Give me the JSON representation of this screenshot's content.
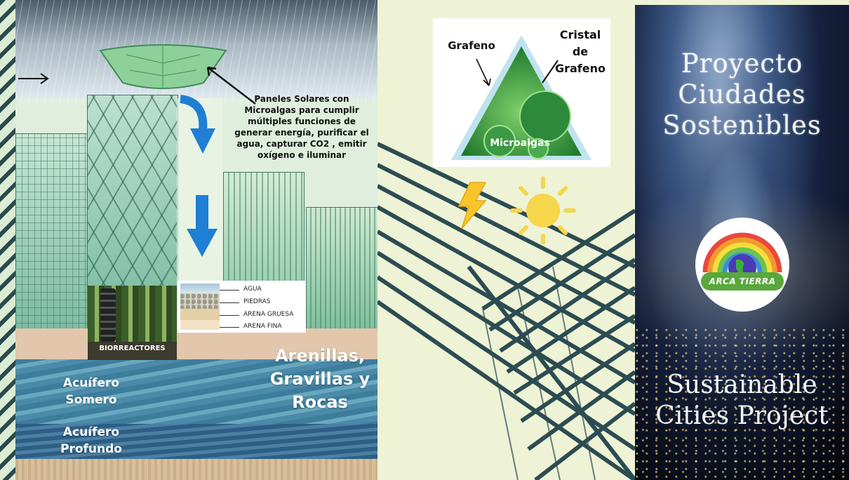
{
  "left_panel": {
    "caption": "Paneles Solares con Microalgas para cumplir múltiples funciones de generar energía, purificar el agua, capturar CO2 , emitir oxígeno e iluminar",
    "bioreactors_label": "BIORREACTORES",
    "filter_layers": [
      "AGUA",
      "PIEDRAS",
      "ARENA GRUESA",
      "ARENA FINA"
    ],
    "arenillas": "Arenillas, Gravillas y Rocas",
    "aquifer_shallow": "Acuífero Somero",
    "aquifer_deep": "Acuífero Profundo",
    "colors": {
      "arrow": "#1e7fd4",
      "water": "#4b8aa8",
      "building": "#7cbba2"
    }
  },
  "middle_panel": {
    "label_grafeno": "Grafeno",
    "label_cristal": "Cristal de Grafeno",
    "label_microalgas": "Microalgas",
    "colors": {
      "bolt": "#f7c52a",
      "sun": "#f6d64a",
      "triangle_border": "#a9d3e8"
    }
  },
  "right_panel": {
    "title": "Proyecto Ciudades Sostenibles",
    "subtitle": "Sustainable Cities Project",
    "logo_text": "ARCA TIERRA"
  }
}
